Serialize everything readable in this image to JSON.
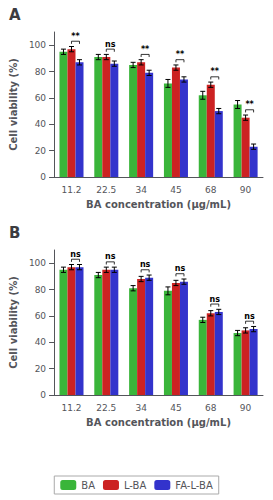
{
  "chart_data": [
    {
      "type": "bar",
      "title": "A",
      "categories": [
        "11.2",
        "22.5",
        "34",
        "45",
        "68",
        "90"
      ],
      "series": [
        {
          "name": "BA",
          "color": "#3ab53a",
          "values": [
            95,
            91,
            85,
            71,
            62,
            55
          ],
          "errors": [
            2,
            2,
            2,
            3,
            3,
            3
          ]
        },
        {
          "name": "L-BA",
          "color": "#cc2222",
          "values": [
            97,
            91,
            87,
            83,
            70,
            45
          ],
          "errors": [
            2,
            2,
            2,
            2,
            2,
            2
          ]
        },
        {
          "name": "FA-L-BA",
          "color": "#3333cc",
          "values": [
            87,
            86,
            79,
            74,
            50,
            23
          ],
          "errors": [
            2,
            2,
            2,
            2,
            2,
            2
          ]
        }
      ],
      "annotations": [
        "**",
        "ns",
        "**",
        "**",
        "**",
        "**"
      ],
      "xlabel": "BA concentration (μg/mL)",
      "ylabel": "Cell viability (%)",
      "ylim": [
        0,
        110
      ],
      "yticks": [
        0,
        20,
        40,
        60,
        80,
        100
      ],
      "grid": false
    },
    {
      "type": "bar",
      "title": "B",
      "categories": [
        "11.2",
        "22.5",
        "34",
        "45",
        "68",
        "90"
      ],
      "series": [
        {
          "name": "BA",
          "color": "#3ab53a",
          "values": [
            95,
            91,
            81,
            79,
            57,
            47
          ],
          "errors": [
            2,
            2,
            2,
            3,
            2,
            2
          ]
        },
        {
          "name": "L-BA",
          "color": "#cc2222",
          "values": [
            97,
            95,
            88,
            85,
            62,
            49
          ],
          "errors": [
            2,
            2,
            2,
            2,
            2,
            2
          ]
        },
        {
          "name": "FA-L-BA",
          "color": "#3333cc",
          "values": [
            97,
            95,
            89,
            86,
            63,
            50
          ],
          "errors": [
            2,
            2,
            2,
            2,
            2,
            2
          ]
        }
      ],
      "annotations": [
        "ns",
        "ns",
        "ns",
        "ns",
        "ns",
        "ns"
      ],
      "xlabel": "BA concentration (μg/mL)",
      "ylabel": "Cell viability (%)",
      "ylim": [
        0,
        110
      ],
      "yticks": [
        0,
        20,
        40,
        60,
        80,
        100
      ],
      "grid": false,
      "legend": "bottom"
    }
  ]
}
